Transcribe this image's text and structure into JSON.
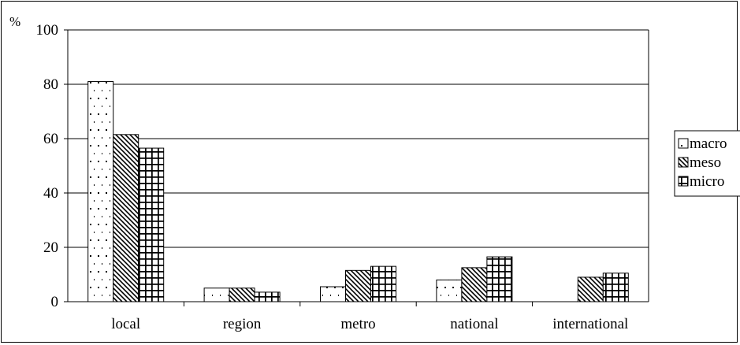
{
  "chart_data": {
    "type": "bar",
    "title": "",
    "xlabel": "",
    "ylabel": "%",
    "ylim": [
      0,
      100
    ],
    "yticks": [
      "0",
      "20",
      "40",
      "60",
      "80",
      "100"
    ],
    "grid": "horizontal",
    "legend_position": "right",
    "categories": [
      "local",
      "region",
      "metro",
      "national",
      "international"
    ],
    "series": [
      {
        "name": "macro",
        "pattern": "dots",
        "values": [
          81,
          5,
          5.5,
          8,
          0
        ]
      },
      {
        "name": "meso",
        "pattern": "diagonal",
        "values": [
          61.5,
          5,
          11.5,
          12.5,
          9
        ]
      },
      {
        "name": "micro",
        "pattern": "grid",
        "values": [
          56.5,
          3.5,
          13,
          16.5,
          10.5
        ]
      }
    ],
    "colors": {
      "bar_fill": "#ffffff",
      "stroke": "#000000",
      "background": "#ffffff"
    }
  }
}
